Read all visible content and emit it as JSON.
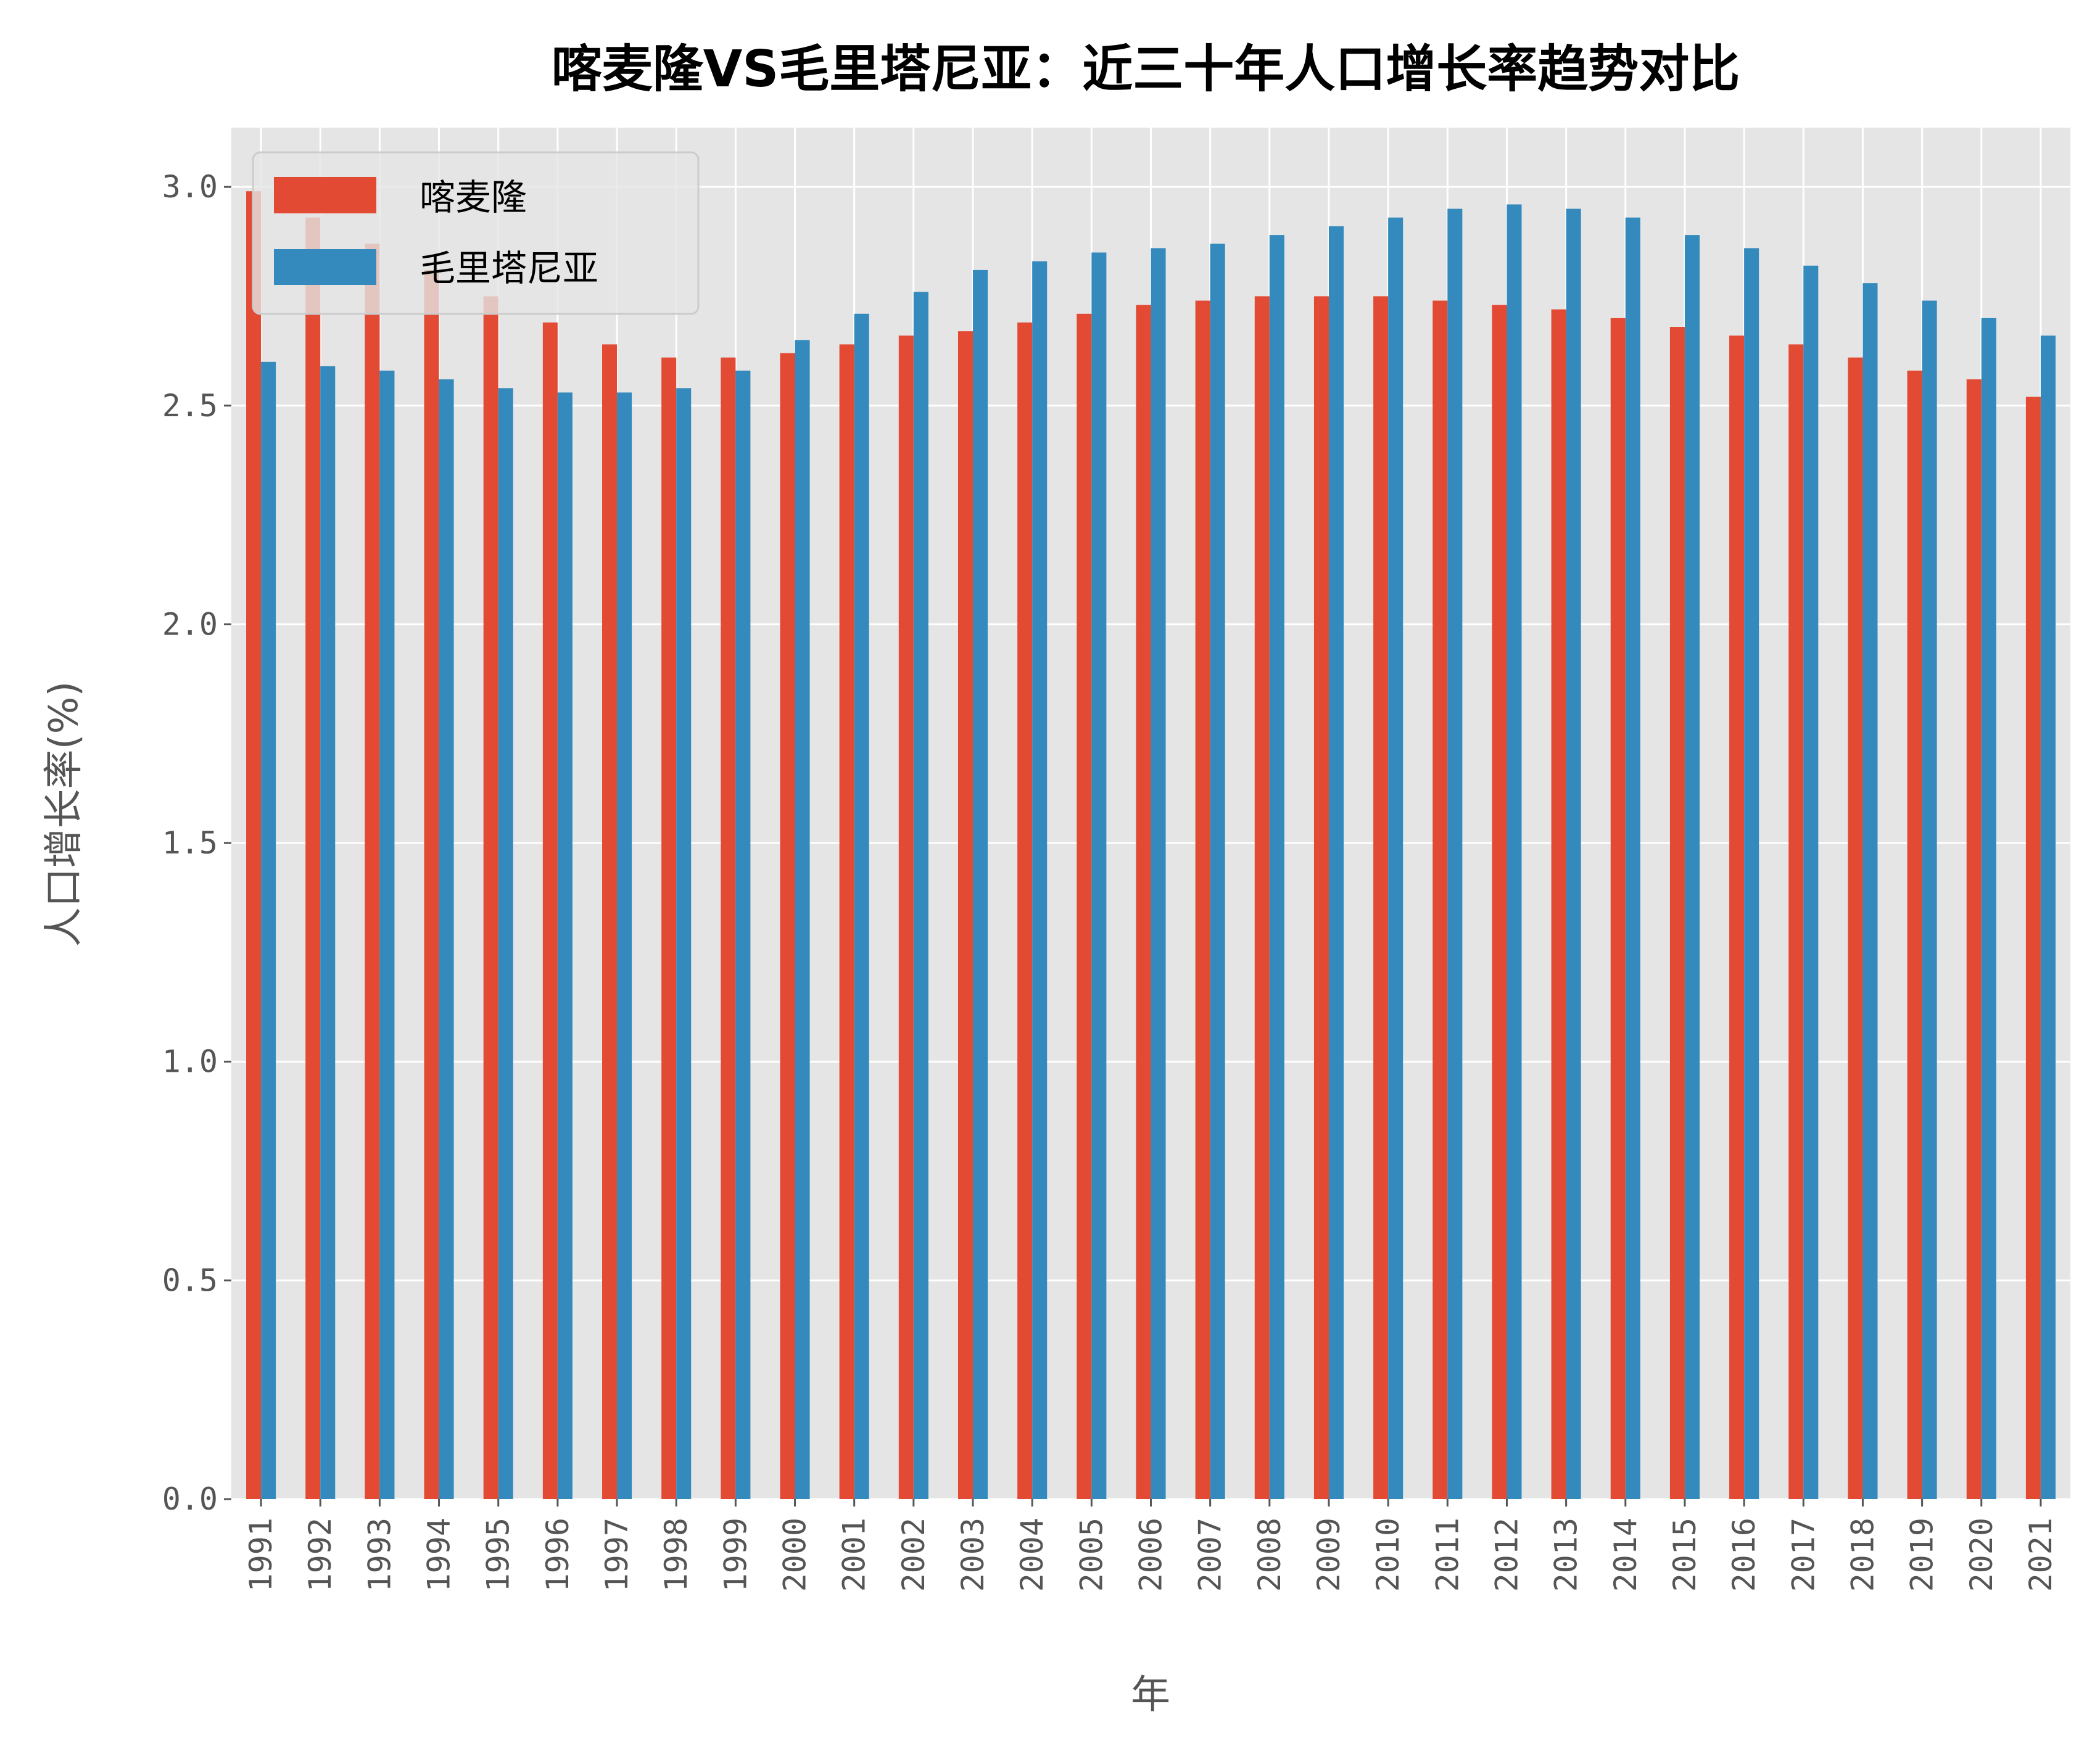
{
  "chart_data": {
    "type": "bar",
    "title": "喀麦隆VS毛里塔尼亚：近三十年人口增长率趋势对比",
    "xlabel": "年",
    "ylabel": "人口增长率(%)",
    "ylim": [
      0,
      3.15
    ],
    "yticks": [
      "0.0",
      "0.5",
      "1.0",
      "1.5",
      "2.0",
      "2.5",
      "3.0"
    ],
    "grid": true,
    "legend": "top-left",
    "categories": [
      "1991",
      "1992",
      "1993",
      "1994",
      "1995",
      "1996",
      "1997",
      "1998",
      "1999",
      "2000",
      "2001",
      "2002",
      "2003",
      "2004",
      "2005",
      "2006",
      "2007",
      "2008",
      "2009",
      "2010",
      "2011",
      "2012",
      "2013",
      "2014",
      "2015",
      "2016",
      "2017",
      "2018",
      "2019",
      "2020",
      "2021"
    ],
    "series": [
      {
        "name": "喀麦隆",
        "color": "#E24A33",
        "values": [
          2.99,
          2.93,
          2.87,
          2.81,
          2.75,
          2.69,
          2.64,
          2.61,
          2.61,
          2.62,
          2.64,
          2.66,
          2.67,
          2.69,
          2.71,
          2.73,
          2.74,
          2.75,
          2.75,
          2.75,
          2.74,
          2.73,
          2.72,
          2.7,
          2.68,
          2.66,
          2.64,
          2.61,
          2.58,
          2.56,
          2.52
        ]
      },
      {
        "name": "毛里塔尼亚",
        "color": "#348ABD",
        "values": [
          2.6,
          2.59,
          2.58,
          2.56,
          2.54,
          2.53,
          2.53,
          2.54,
          2.58,
          2.65,
          2.71,
          2.76,
          2.81,
          2.83,
          2.85,
          2.86,
          2.87,
          2.89,
          2.91,
          2.93,
          2.95,
          2.96,
          2.95,
          2.93,
          2.89,
          2.86,
          2.82,
          2.78,
          2.74,
          2.7,
          2.66
        ]
      }
    ]
  }
}
